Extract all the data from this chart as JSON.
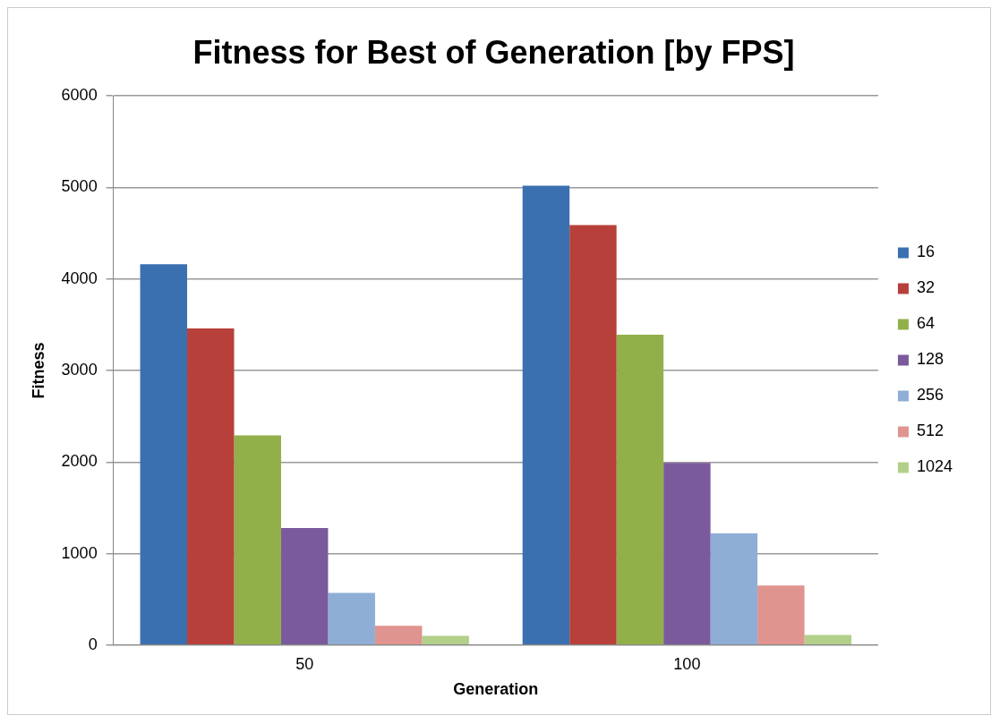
{
  "chart_data": {
    "type": "bar",
    "title": "Fitness for Best of Generation [by FPS]",
    "xlabel": "Generation",
    "ylabel": "Fitness",
    "categories": [
      "50",
      "100"
    ],
    "series": [
      {
        "name": "16",
        "color": "#3a70b0",
        "values": [
          4160,
          5020
        ]
      },
      {
        "name": "32",
        "color": "#b8403a",
        "values": [
          3460,
          4590
        ]
      },
      {
        "name": "64",
        "color": "#92b04a",
        "values": [
          2290,
          3390
        ]
      },
      {
        "name": "128",
        "color": "#7a5a9c",
        "values": [
          1280,
          1990
        ]
      },
      {
        "name": "256",
        "color": "#8eaed6",
        "values": [
          570,
          1220
        ]
      },
      {
        "name": "512",
        "color": "#e09490",
        "values": [
          210,
          650
        ]
      },
      {
        "name": "1024",
        "color": "#b2d08a",
        "values": [
          100,
          110
        ]
      }
    ],
    "ylim": [
      0,
      6000
    ],
    "yticks": [
      0,
      1000,
      2000,
      3000,
      4000,
      5000,
      6000
    ],
    "grid": "y",
    "legend": "right"
  }
}
